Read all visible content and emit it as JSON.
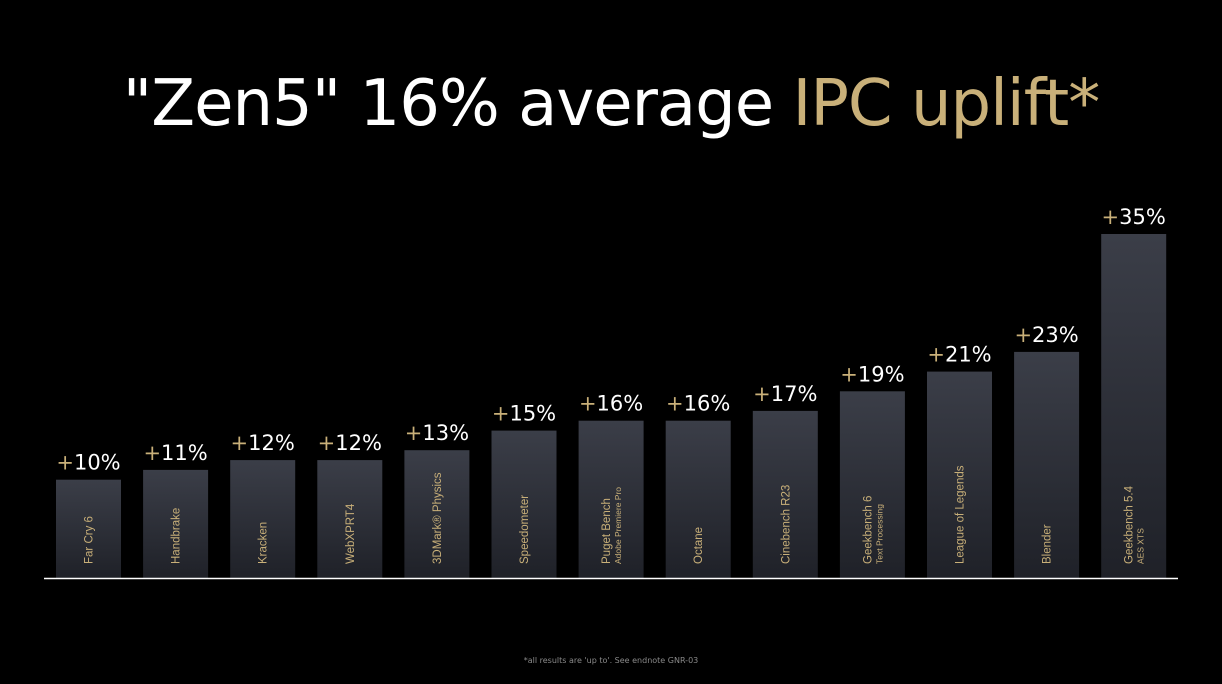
{
  "title": {
    "part1": "\"Zen5\" 16% average ",
    "part2": "IPC uplift*"
  },
  "footnote": "*all results are 'up to'. See endnote GNR-03",
  "colors": {
    "background": "#000000",
    "title_white": "#ffffff",
    "accent_gold": "#c9b079",
    "bar_top": "#3b3e48",
    "bar_bottom": "#1f2128",
    "bar_label": "#c9b079",
    "value_label": "#ffffff",
    "baseline": "#ffffff"
  },
  "chart_data": {
    "type": "bar",
    "title": "\"Zen5\" 16% average IPC uplift*",
    "categories": [
      [
        "Far Cry 6"
      ],
      [
        "Handbrake"
      ],
      [
        "Kracken"
      ],
      [
        "WebXPRT4"
      ],
      [
        "3DMark® Physics"
      ],
      [
        "Speedometer"
      ],
      [
        "Puget Bench",
        "Adobe Premiere Pro"
      ],
      [
        "Octane"
      ],
      [
        "Cinebench R23"
      ],
      [
        "Geekbench 6",
        "Text Processing"
      ],
      [
        "League of Legends"
      ],
      [
        "Blender"
      ],
      [
        "Geekbench 5.4",
        "AES XTS"
      ]
    ],
    "values": [
      10,
      11,
      12,
      12,
      13,
      15,
      16,
      16,
      17,
      19,
      21,
      23,
      35
    ],
    "value_labels": [
      "10%",
      "11%",
      "12%",
      "12%",
      "13%",
      "15%",
      "16%",
      "16%",
      "17%",
      "19%",
      "21%",
      "23%",
      "35%"
    ],
    "value_prefix": "+",
    "xlabel": "",
    "ylabel": "",
    "ylim": [
      0,
      35
    ],
    "grid": false,
    "legend": "none"
  }
}
